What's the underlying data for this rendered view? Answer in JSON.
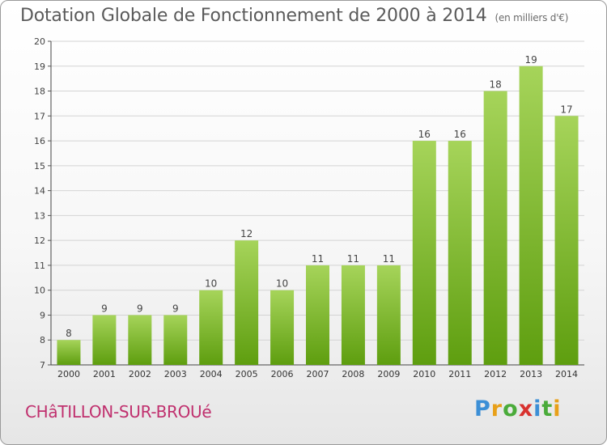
{
  "title": "Dotation Globale de Fonctionnement de 2000 à 2014",
  "subtitle": "(en milliers d'€)",
  "city": "CHâTILLON-SUR-BROUé",
  "logo": {
    "text": "Proxiti",
    "letter_colors": [
      "#3c8fd6",
      "#e8a019",
      "#4aab3a",
      "#d8322f",
      "#3c8fd6",
      "#4aab3a",
      "#e8a019"
    ]
  },
  "colors": {
    "bar_top": "#a6d45a",
    "bar_bottom": "#5e9e0f",
    "city": "#c0306e",
    "text": "#5a5a5a",
    "grid": "#d4d4d4"
  },
  "chart_data": {
    "type": "bar",
    "title": "Dotation Globale de Fonctionnement de 2000 à 2014",
    "subtitle": "(en milliers d'€)",
    "xlabel": "",
    "ylabel": "",
    "categories": [
      "2000",
      "2001",
      "2002",
      "2003",
      "2004",
      "2005",
      "2006",
      "2007",
      "2008",
      "2009",
      "2010",
      "2011",
      "2012",
      "2013",
      "2014"
    ],
    "values": [
      8,
      9,
      9,
      9,
      10,
      12,
      10,
      11,
      11,
      11,
      16,
      16,
      18,
      19,
      17
    ],
    "ylim": [
      7,
      20
    ],
    "yticks": [
      7,
      8,
      9,
      10,
      11,
      12,
      13,
      14,
      15,
      16,
      17,
      18,
      19,
      20
    ],
    "grid": true,
    "legend": "none"
  }
}
